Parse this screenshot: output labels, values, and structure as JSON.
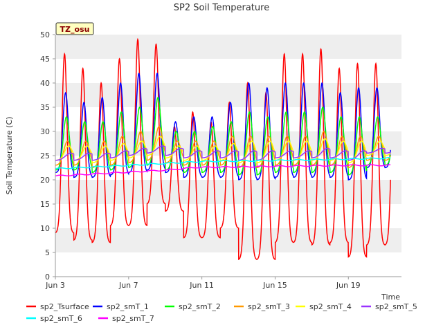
{
  "chart_data": {
    "type": "line",
    "title": "SP2 Soil Temperature",
    "xlabel": "Time",
    "ylabel": "Soil Temperature (C)",
    "site_label": "TZ_osu",
    "ylim": [
      0,
      50
    ],
    "yticks": [
      0,
      5,
      10,
      15,
      20,
      25,
      30,
      35,
      40,
      45,
      50
    ],
    "xlim": [
      3.0,
      21.9
    ],
    "xticks": [
      {
        "label": "Jun 3",
        "day": 3
      },
      {
        "label": "Jun 7",
        "day": 7
      },
      {
        "label": "Jun 11",
        "day": 11
      },
      {
        "label": "Jun 15",
        "day": 15
      },
      {
        "label": "Jun 19",
        "day": 19
      }
    ],
    "series": [
      {
        "name": "sp2_Tsurface",
        "color": "#ff0000",
        "phase": 0.5,
        "width": 0.14,
        "mins": [
          9,
          7.5,
          7,
          10.5,
          10.5,
          15,
          13.5,
          8,
          8,
          10,
          3.5,
          3.5,
          7,
          7,
          6.5,
          7,
          4,
          6.5
        ],
        "peaks": [
          46,
          43,
          40,
          45,
          49,
          48,
          31,
          34,
          32,
          36,
          40,
          38,
          46,
          46,
          47,
          43,
          44,
          44
        ]
      },
      {
        "name": "sp2_smT_1",
        "color": "#0000ff",
        "phase": 0.56,
        "width": 0.15,
        "mins": [
          21.5,
          20.5,
          20.5,
          21,
          21.5,
          22,
          21.5,
          20.5,
          20.5,
          20.5,
          20,
          20,
          20.5,
          20.5,
          20.5,
          20.5,
          20,
          22.5
        ],
        "peaks": [
          38,
          36,
          37,
          40,
          42,
          42,
          32,
          33,
          33,
          36,
          40,
          39,
          40,
          40,
          40,
          38,
          39,
          39
        ]
      },
      {
        "name": "sp2_smT_2",
        "color": "#00ff00",
        "phase": 0.6,
        "width": 0.17,
        "mins": [
          22,
          22,
          21.5,
          22,
          22.5,
          23,
          22,
          21.5,
          21.5,
          21.5,
          21,
          21,
          21.5,
          21.5,
          21.5,
          21.5,
          21,
          23
        ],
        "peaks": [
          33,
          32,
          32,
          34,
          35,
          37,
          30,
          30,
          31,
          32,
          34,
          33,
          34,
          34,
          35,
          33,
          33,
          33
        ]
      },
      {
        "name": "sp2_smT_3",
        "color": "#ff9900",
        "phase": 0.66,
        "width": 0.2,
        "mins": [
          23,
          23,
          22.5,
          23,
          23.5,
          24,
          23.5,
          23,
          23,
          23,
          22.5,
          22.5,
          23,
          23,
          23,
          23,
          22.5,
          24
        ],
        "peaks": [
          28,
          28,
          28,
          29,
          30,
          31,
          28,
          28,
          28,
          29,
          29,
          29,
          29,
          29,
          30,
          29,
          29,
          29
        ]
      },
      {
        "name": "sp2_smT_4",
        "color": "#ffff00",
        "phase": 0.72,
        "width": 0.22,
        "mins": [
          24,
          24,
          23.5,
          24,
          24.5,
          25,
          24.5,
          24,
          24,
          24,
          23.5,
          23.5,
          24,
          24,
          24,
          24,
          23.5,
          25
        ],
        "peaks": [
          27,
          27,
          27,
          27.5,
          28,
          29,
          27,
          27,
          27,
          27.5,
          28,
          28,
          28,
          28,
          28.5,
          28,
          28,
          28
        ]
      },
      {
        "name": "sp2_smT_5",
        "color": "#9933ff",
        "phase": 0.85,
        "width": 0.3,
        "mins": [
          24,
          24,
          24,
          24.5,
          25,
          25.5,
          25,
          24.5,
          24.5,
          24.5,
          24,
          24,
          24.5,
          24.5,
          24.5,
          24.5,
          24,
          25.5
        ],
        "peaks": [
          25.5,
          25.5,
          25.5,
          26,
          26.5,
          27,
          26.5,
          26,
          26,
          26,
          26,
          26,
          26,
          26,
          26.5,
          26,
          26,
          26.5
        ]
      },
      {
        "name": "sp2_smT_6",
        "color": "#00ffff",
        "trend": [
          [
            3.0,
            22.3
          ],
          [
            7.0,
            23.0
          ],
          [
            11.0,
            23.8
          ],
          [
            15.0,
            24.0
          ],
          [
            19.0,
            24.3
          ],
          [
            21.3,
            24.5
          ]
        ]
      },
      {
        "name": "sp2_smT_7",
        "color": "#ff00ff",
        "trend": [
          [
            3.0,
            20.8
          ],
          [
            5.0,
            21.2
          ],
          [
            7.0,
            21.6
          ],
          [
            9.0,
            22.0
          ],
          [
            10.8,
            22.6
          ],
          [
            11.5,
            22.6
          ],
          [
            15.0,
            22.8
          ],
          [
            19.0,
            23.0
          ],
          [
            21.3,
            23.0
          ]
        ]
      }
    ]
  }
}
